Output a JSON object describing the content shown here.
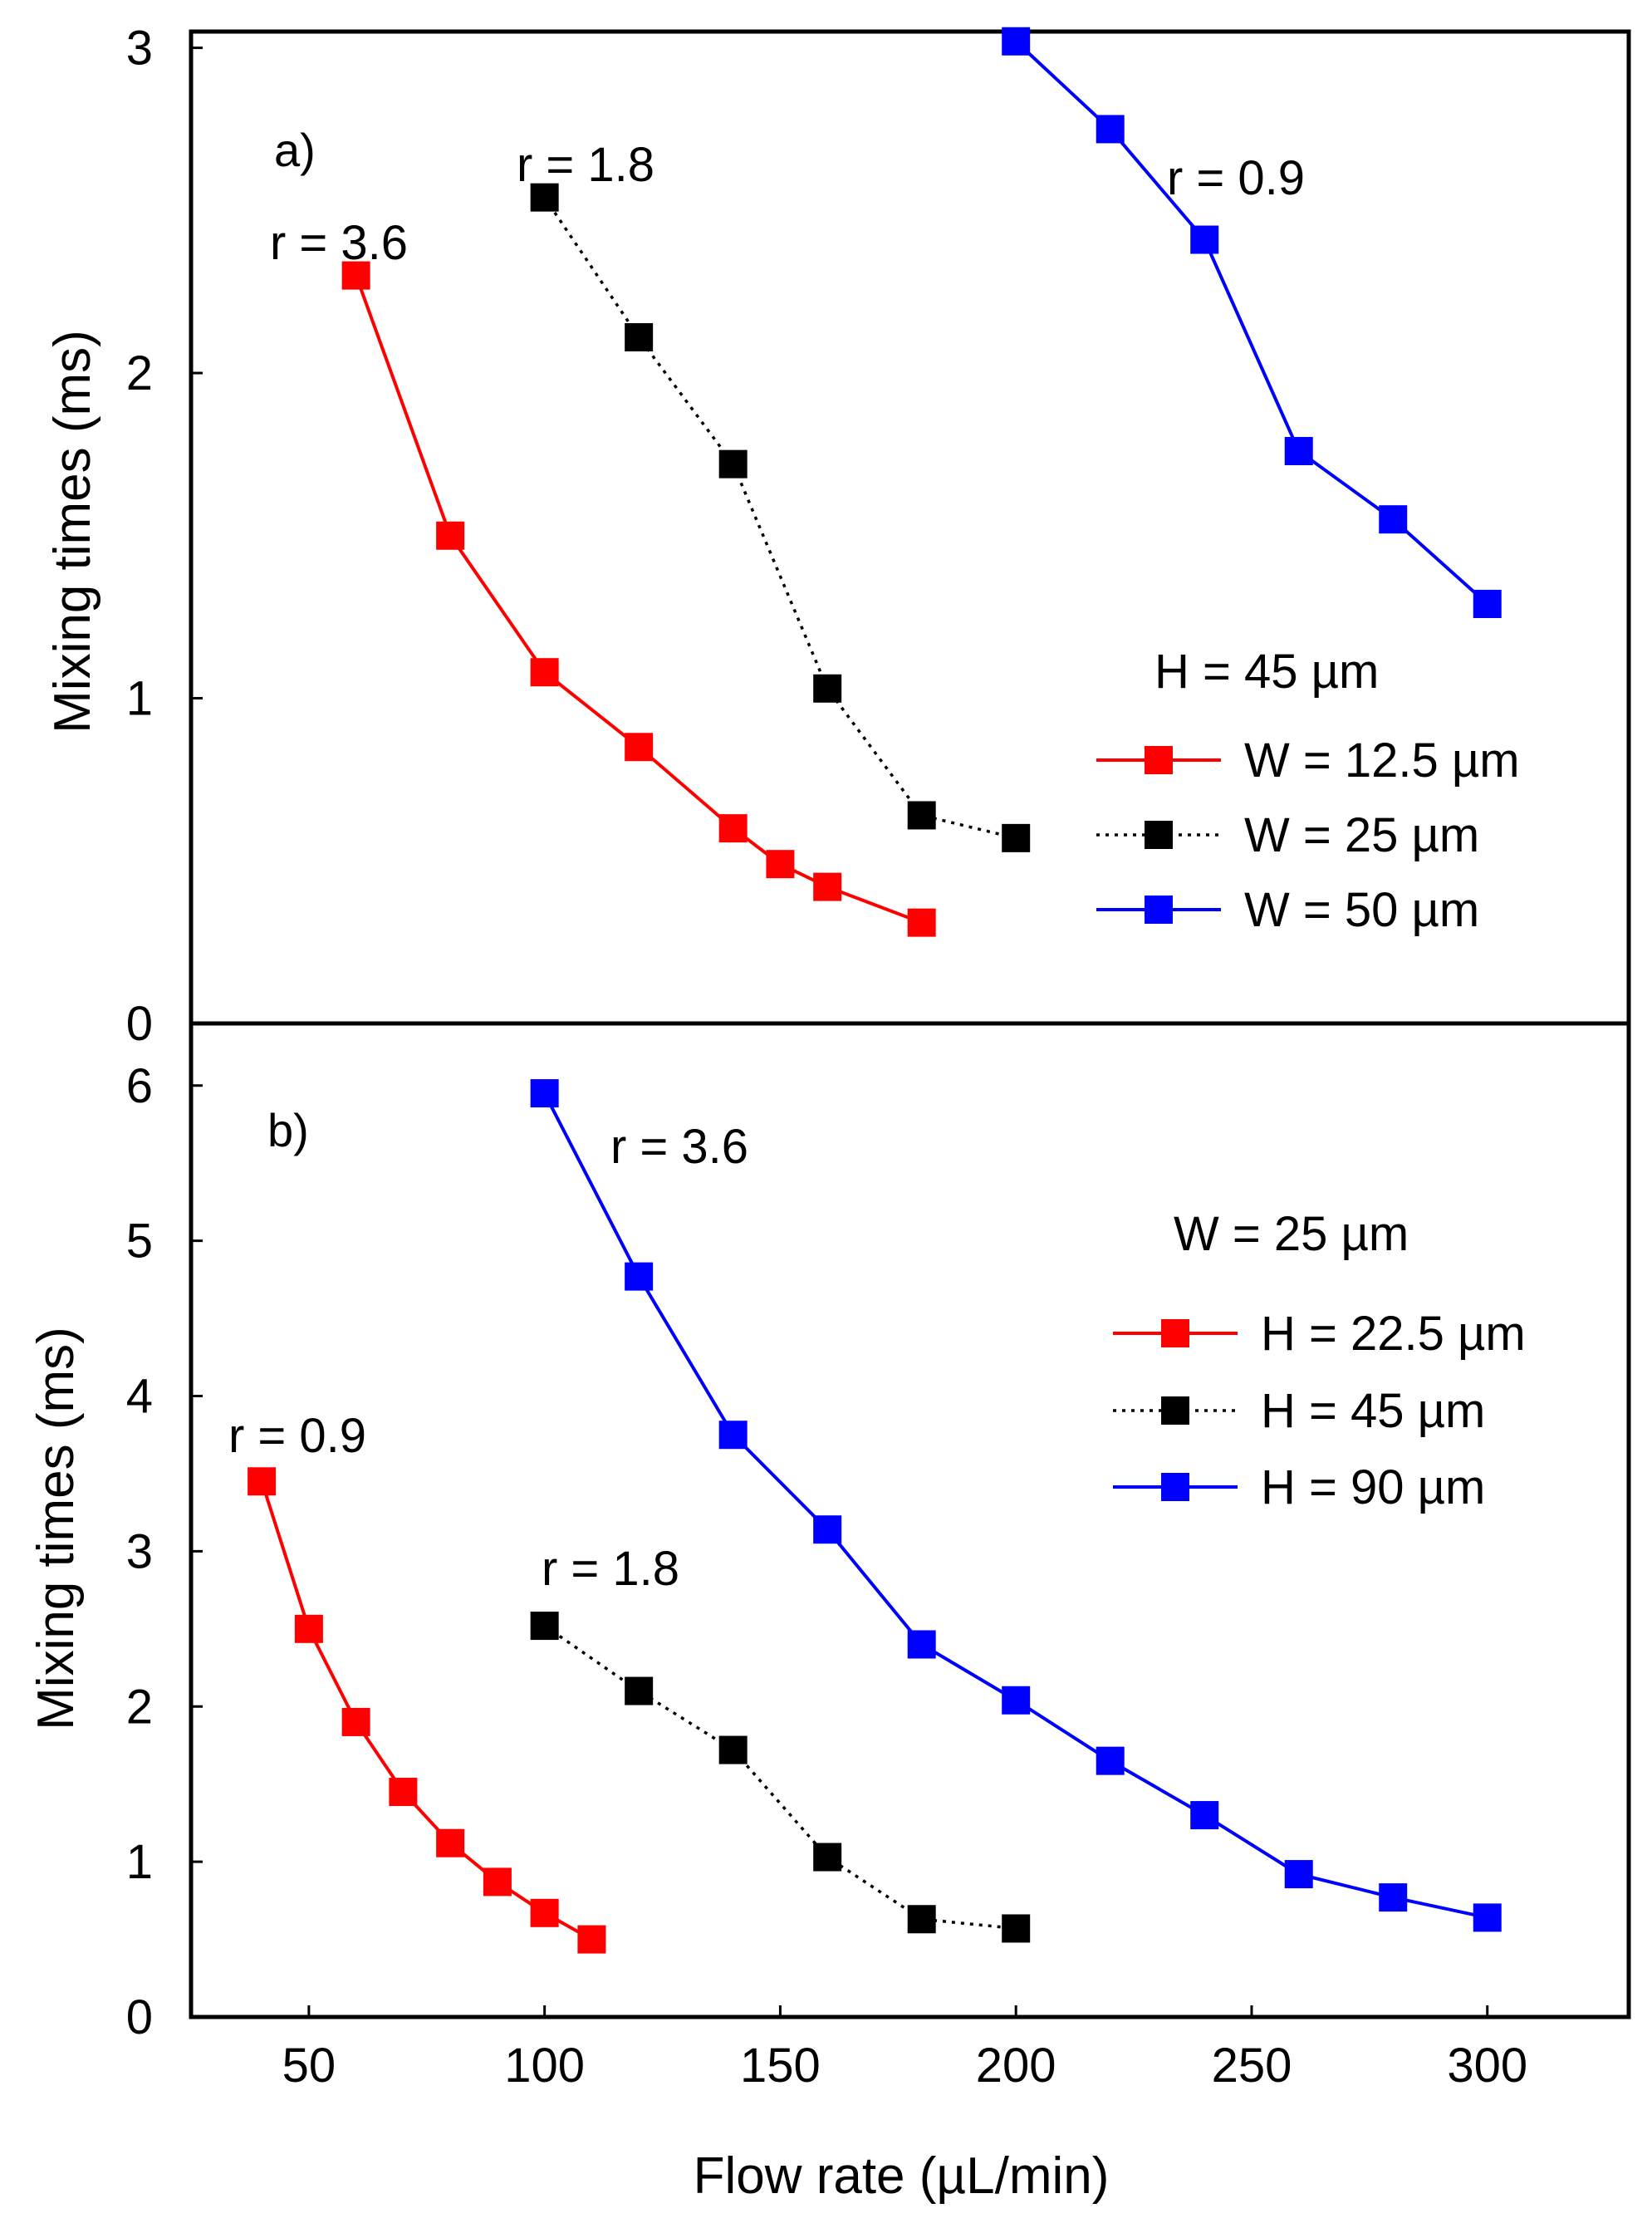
{
  "chart_data": [
    {
      "type": "line",
      "panel_label": "a)",
      "xlabel": "",
      "ylabel": "Mixing times (ms)",
      "xlim": [
        25,
        330
      ],
      "ylim": [
        0,
        3.05
      ],
      "yticks": [
        "0",
        "1",
        "2",
        "3"
      ],
      "yticks_values": [
        0,
        1,
        2,
        3
      ],
      "legend_title": "H = 45 µm",
      "legend_position": "right-middle",
      "series": [
        {
          "name": "W = 12.5 µm",
          "color": "#ff0000",
          "style": "solid",
          "annotation": "r = 3.6",
          "x": [
            60,
            80,
            100,
            120,
            140,
            150,
            160,
            180
          ],
          "y": [
            2.3,
            1.5,
            1.08,
            0.85,
            0.6,
            0.49,
            0.42,
            0.31
          ]
        },
        {
          "name": "W = 25 µm",
          "color": "#000000",
          "style": "dotted",
          "annotation": "r = 1.8",
          "x": [
            100,
            120,
            140,
            160,
            180,
            200
          ],
          "y": [
            2.54,
            2.11,
            1.72,
            1.03,
            0.64,
            0.57
          ]
        },
        {
          "name": "W = 50 µm",
          "color": "#0000ff",
          "style": "solid",
          "annotation": "r = 0.9",
          "x": [
            200,
            220,
            240,
            260,
            280,
            300
          ],
          "y": [
            3.02,
            2.75,
            2.41,
            1.76,
            1.55,
            1.29
          ]
        }
      ]
    },
    {
      "type": "line",
      "panel_label": "b)",
      "xlabel": "Flow rate (µL/min)",
      "ylabel": "Mixing times (ms)",
      "xlim": [
        25,
        330
      ],
      "ylim": [
        0,
        6.4
      ],
      "xticks": [
        "50",
        "100",
        "150",
        "200",
        "250",
        "300"
      ],
      "xticks_values": [
        50,
        100,
        150,
        200,
        250,
        300
      ],
      "yticks": [
        "0",
        "1",
        "2",
        "3",
        "4",
        "5",
        "6"
      ],
      "yticks_values": [
        0,
        1,
        2,
        3,
        4,
        5,
        6
      ],
      "legend_title": "W = 25 µm",
      "legend_position": "right-top",
      "series": [
        {
          "name": "H = 22.5 µm",
          "color": "#ff0000",
          "style": "solid",
          "annotation": "r = 0.9",
          "x": [
            40,
            50,
            60,
            70,
            80,
            90,
            100,
            110
          ],
          "y": [
            3.45,
            2.5,
            1.9,
            1.45,
            1.12,
            0.87,
            0.67,
            0.5
          ]
        },
        {
          "name": "H = 45 µm",
          "color": "#000000",
          "style": "dotted",
          "annotation": "r = 1.8",
          "x": [
            100,
            120,
            140,
            160,
            180,
            200
          ],
          "y": [
            2.52,
            2.1,
            1.72,
            1.03,
            0.63,
            0.57
          ]
        },
        {
          "name": "H = 90 µm",
          "color": "#0000ff",
          "style": "solid",
          "annotation": "r = 3.6",
          "x": [
            100,
            120,
            140,
            160,
            180,
            200,
            220,
            240,
            260,
            280,
            300
          ],
          "y": [
            5.95,
            4.77,
            3.75,
            3.14,
            2.4,
            2.04,
            1.65,
            1.3,
            0.92,
            0.77,
            0.64
          ]
        }
      ]
    }
  ]
}
